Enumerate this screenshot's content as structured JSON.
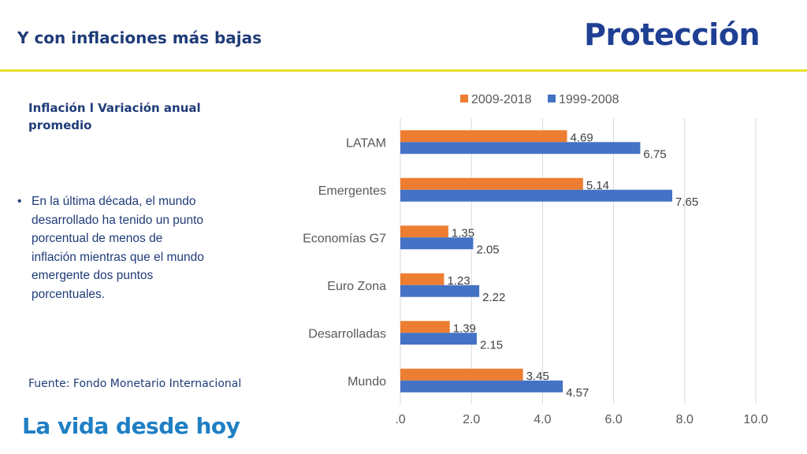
{
  "header": {
    "title": "Y con inflaciones más bajas",
    "brand": "Protección"
  },
  "left": {
    "chart_heading": "Inflación l Variación anual promedio",
    "bullet": "En la última década, el mundo desarrollado ha tenido un punto porcentual de menos de inflación mientras que el mundo emergente dos puntos porcentuales.",
    "source": "Fuente: Fondo Monetario Internacional"
  },
  "footer": {
    "tagline": "La vida desde hoy"
  },
  "colors": {
    "series_2009_2018": "#ed7d31",
    "series_1999_2008": "#4472c4",
    "accent_rule": "#e7e02a",
    "brand_blue": "#1f3f93"
  },
  "chart_data": {
    "type": "bar",
    "orientation": "horizontal",
    "categories": [
      "LATAM",
      "Emergentes",
      "Economías G7",
      "Euro Zona",
      "Desarrolladas",
      "Mundo"
    ],
    "series": [
      {
        "name": "2009-2018",
        "values": [
          4.69,
          5.14,
          1.35,
          1.23,
          1.39,
          3.45
        ],
        "labels": [
          "4.69",
          "5.14",
          "1.35",
          "1.23",
          "1.39",
          "3.45"
        ]
      },
      {
        "name": "1999-2008",
        "values": [
          6.75,
          7.65,
          2.05,
          2.22,
          2.15,
          4.57
        ],
        "labels": [
          "6.75",
          "7.65",
          "2.05",
          "2.22",
          "2.15",
          "4.57"
        ]
      }
    ],
    "xlim": [
      0,
      10
    ],
    "xticks": [
      ".0",
      "2.0",
      "4.0",
      "6.0",
      "8.0",
      "10.0"
    ],
    "grid": "vertical",
    "legend": "top"
  }
}
